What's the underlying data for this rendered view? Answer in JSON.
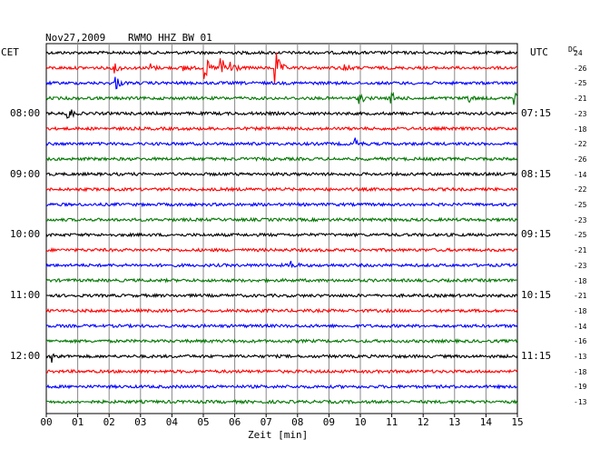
{
  "header": {
    "date": "Nov27,2009",
    "station": "RWMO HHZ BW 01",
    "left_zone": "CET",
    "right_zone": "UTC",
    "dc_label": "DC"
  },
  "chart_data": {
    "type": "line",
    "title": "Nov27,2009   RWMO HHZ BW 01",
    "xlabel": "Zeit [min]",
    "ylabel": "",
    "xlim": [
      0,
      15
    ],
    "x_ticks": [
      "00",
      "01",
      "02",
      "03",
      "04",
      "05",
      "06",
      "07",
      "08",
      "09",
      "10",
      "11",
      "12",
      "13",
      "14",
      "15"
    ],
    "grid": true,
    "trace_colors": [
      "#000000",
      "#ff0000",
      "#0000ff",
      "#007700"
    ],
    "rows": 24,
    "left_time_labels": [
      {
        "row": 4,
        "label": "08:00"
      },
      {
        "row": 8,
        "label": "09:00"
      },
      {
        "row": 12,
        "label": "10:00"
      },
      {
        "row": 16,
        "label": "11:00"
      },
      {
        "row": 20,
        "label": "12:00"
      }
    ],
    "right_time_labels": [
      {
        "row": 4,
        "label": "07:15"
      },
      {
        "row": 8,
        "label": "08:15"
      },
      {
        "row": 12,
        "label": "09:15"
      },
      {
        "row": 16,
        "label": "10:15"
      },
      {
        "row": 20,
        "label": "11:15"
      }
    ],
    "dc_offsets": [
      "24",
      "-26",
      "-25",
      "-21",
      "-23",
      "-18",
      "-22",
      "-26",
      "-14",
      "-22",
      "-25",
      "-23",
      "-25",
      "-21",
      "-23",
      "-18",
      "-21",
      "-18",
      "-14",
      "-16",
      "-13",
      "-18",
      "-19",
      "-13"
    ],
    "events": [
      {
        "row": 1,
        "minute": 2.2,
        "amp": 0.35
      },
      {
        "row": 1,
        "minute": 3.3,
        "amp": 0.35
      },
      {
        "row": 1,
        "minute": 4.4,
        "amp": 0.3
      },
      {
        "row": 1,
        "minute": 5.05,
        "amp": 1.0
      },
      {
        "row": 1,
        "minute": 5.55,
        "amp": 1.0
      },
      {
        "row": 1,
        "minute": 5.9,
        "amp": 0.8
      },
      {
        "row": 1,
        "minute": 7.3,
        "amp": 1.5
      },
      {
        "row": 1,
        "minute": 9.5,
        "amp": 0.4
      },
      {
        "row": 2,
        "minute": 2.2,
        "amp": 0.6
      },
      {
        "row": 3,
        "minute": 10.0,
        "amp": 0.35
      },
      {
        "row": 3,
        "minute": 11.0,
        "amp": 0.45
      },
      {
        "row": 3,
        "minute": 13.4,
        "amp": 0.4
      },
      {
        "row": 3,
        "minute": 14.9,
        "amp": 0.4
      },
      {
        "row": 4,
        "minute": 0.7,
        "amp": 0.6
      },
      {
        "row": 6,
        "minute": 9.8,
        "amp": 0.5
      },
      {
        "row": 14,
        "minute": 7.8,
        "amp": 0.3
      },
      {
        "row": 20,
        "minute": 0.2,
        "amp": 0.4
      }
    ]
  }
}
